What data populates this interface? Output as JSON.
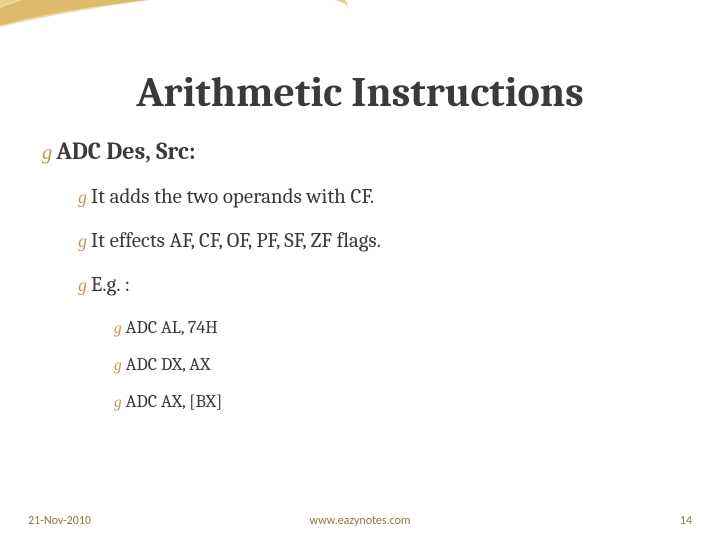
{
  "slide": {
    "title": "Arithmetic Instructions",
    "bullet_icon": "g",
    "level1": {
      "text": "ADC Des, Src:"
    },
    "level2": [
      {
        "text": "It adds the two operands with CF."
      },
      {
        "text": "It effects AF, CF, OF, PF, SF, ZF flags."
      },
      {
        "text": "E.g. :"
      }
    ],
    "level3": [
      {
        "text": "ADC AL, 74H"
      },
      {
        "text": "ADC DX, AX"
      },
      {
        "text": "ADC AX, [BX]"
      }
    ]
  },
  "footer": {
    "date": "21-Nov-2010",
    "url": "www.eazynotes.com",
    "page": "14"
  },
  "colors": {
    "title_color": "#3a3a3a",
    "bullet_color": "#b89a4a",
    "footer_color": "#8a7a4a",
    "swoosh_light": "#f0dba8",
    "swoosh_mid": "#e8c77a",
    "swoosh_dark": "#d4a94a"
  }
}
